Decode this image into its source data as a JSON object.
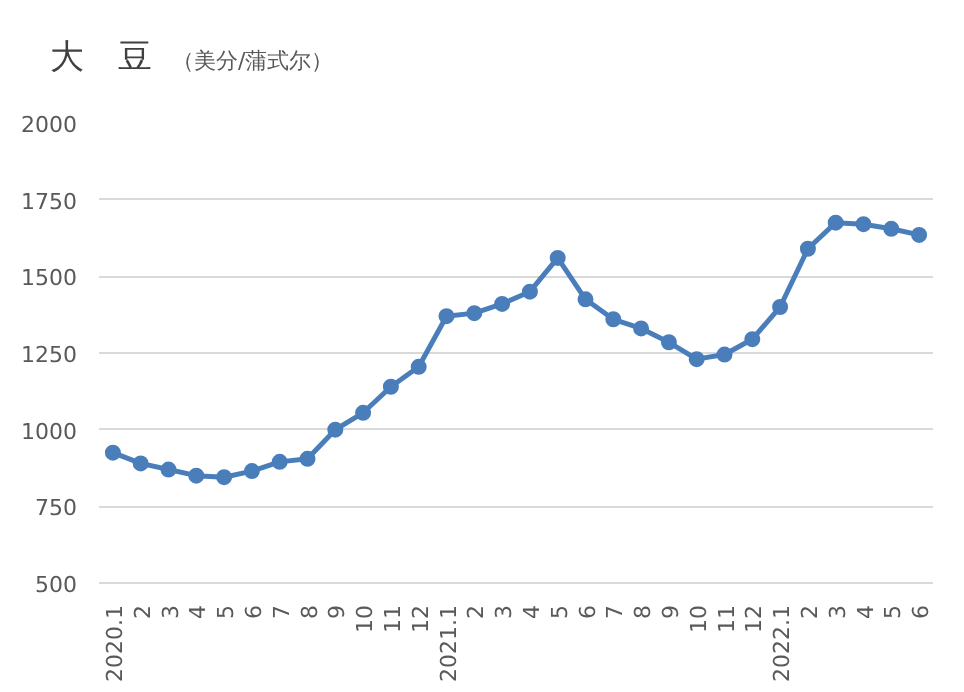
{
  "chart_data": {
    "type": "line",
    "title": "大　豆",
    "subtitle": "（美分/蒲式尔）",
    "categories": [
      "2020.1",
      "2",
      "3",
      "4",
      "5",
      "6",
      "7",
      "8",
      "9",
      "10",
      "11",
      "12",
      "2021.1",
      "2",
      "3",
      "4",
      "5",
      "6",
      "7",
      "8",
      "9",
      "10",
      "11",
      "12",
      "2022.1",
      "2",
      "3",
      "4",
      "5",
      "6"
    ],
    "series": [
      {
        "color": "#4a7ebb",
        "values": [
          925,
          890,
          870,
          850,
          845,
          865,
          895,
          905,
          1000,
          1055,
          1140,
          1205,
          1370,
          1380,
          1410,
          1450,
          1560,
          1425,
          1360,
          1330,
          1285,
          1230,
          1245,
          1295,
          1400,
          1590,
          1675,
          1670,
          1655,
          1635
        ]
      }
    ],
    "ylim": [
      500,
      2000
    ],
    "yticks": [
      500,
      750,
      1000,
      1250,
      1500,
      1750,
      2000
    ],
    "grid": "y",
    "marker": "circle",
    "line_style": "solid"
  }
}
